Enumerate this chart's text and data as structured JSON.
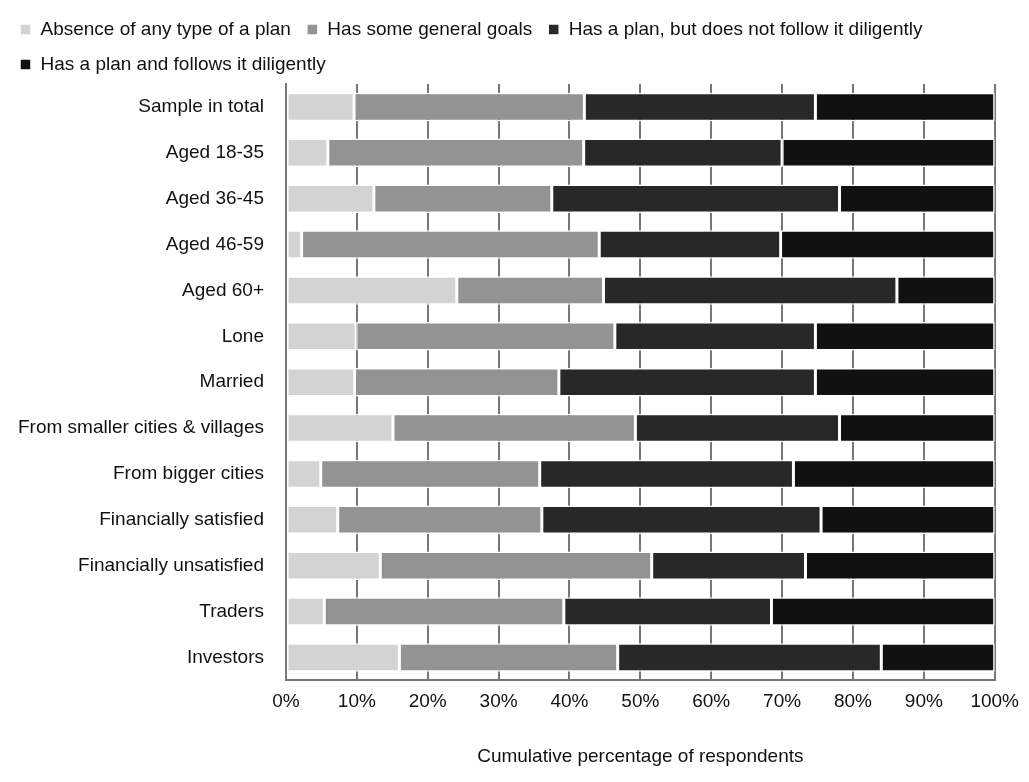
{
  "chart_data": {
    "type": "bar",
    "orientation": "horizontal",
    "stacked": true,
    "xlabel": "Cumulative percentage of respondents",
    "categories": [
      "Sample in total",
      "Aged 18-35",
      "Aged 36-45",
      "Aged 46-59",
      "Aged 60+",
      "Lone",
      "Married",
      "From smaller cities & villages",
      "From bigger cities",
      "Financially satisfied",
      "Financially unsatisfied",
      "Traders",
      "Investors"
    ],
    "series": [
      {
        "name": "Absence of any type of a plan",
        "color": "#d3d3d3",
        "values": [
          9.6,
          5.9,
          12.4,
          2.2,
          24.1,
          9.9,
          9.7,
          15.1,
          4.9,
          7.3,
          13.3,
          5.4,
          16.0
        ]
      },
      {
        "name": "Has some general goals",
        "color": "#939393",
        "values": [
          32.5,
          36.1,
          25.1,
          42.0,
          20.7,
          36.5,
          28.8,
          34.2,
          30.9,
          28.8,
          38.3,
          33.8,
          30.8
        ]
      },
      {
        "name": "Has a plan, but does not follow it diligently",
        "color": "#282828",
        "values": [
          32.6,
          28.0,
          40.6,
          25.6,
          41.4,
          28.3,
          36.2,
          28.8,
          35.8,
          39.4,
          21.7,
          29.3,
          37.2
        ]
      },
      {
        "name": "Has a plan and follows it diligently",
        "color": "#111111",
        "values": [
          25.3,
          30.0,
          21.9,
          30.2,
          13.8,
          25.3,
          25.3,
          21.9,
          28.4,
          24.5,
          26.7,
          31.5,
          16.0
        ]
      }
    ],
    "xlim": [
      0,
      100
    ],
    "xticks": [
      {
        "value": 0,
        "label": "0%"
      },
      {
        "value": 10,
        "label": "10%"
      },
      {
        "value": 20,
        "label": "20%"
      },
      {
        "value": 30,
        "label": "30%"
      },
      {
        "value": 40,
        "label": "40%"
      },
      {
        "value": 50,
        "label": "50%"
      },
      {
        "value": 60,
        "label": "60%"
      },
      {
        "value": 70,
        "label": "70%"
      },
      {
        "value": 80,
        "label": "80%"
      },
      {
        "value": 90,
        "label": "90%"
      },
      {
        "value": 100,
        "label": "100%"
      }
    ],
    "grid": "x",
    "legend": "top left"
  }
}
